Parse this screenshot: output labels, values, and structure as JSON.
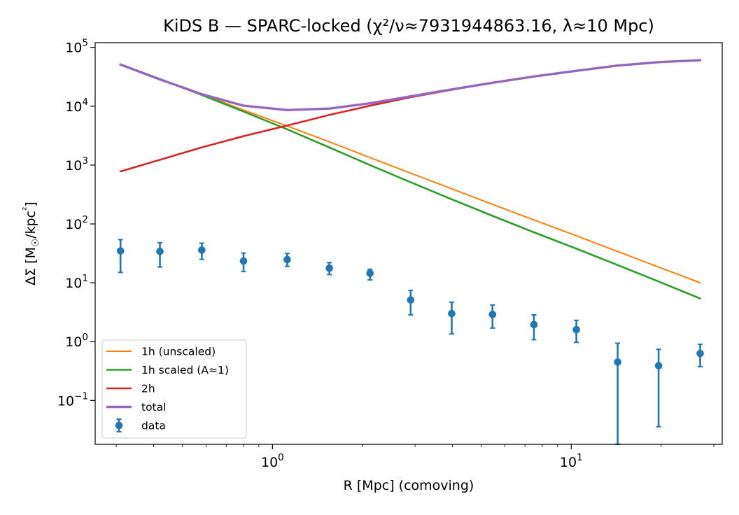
{
  "chart_data": {
    "type": "line",
    "title": "KiDS B — SPARC-locked (χ²/ν≈7931944863.16, λ≈10 Mpc)",
    "xlabel": "R [Mpc] (comoving)",
    "ylabel": "ΔΣ [M☉/kpc²]",
    "xscale": "log",
    "yscale": "log",
    "xlim": [
      0.255,
      32
    ],
    "ylim": [
      0.018,
      120000
    ],
    "x_ticks": [
      {
        "value": 1,
        "base": "10",
        "exp": "0"
      },
      {
        "value": 10,
        "base": "10",
        "exp": "1"
      }
    ],
    "y_ticks": [
      {
        "value": 100000,
        "base": "10",
        "exp": "5"
      },
      {
        "value": 10000,
        "base": "10",
        "exp": "4"
      },
      {
        "value": 1000,
        "base": "10",
        "exp": "3"
      },
      {
        "value": 100,
        "base": "10",
        "exp": "2"
      },
      {
        "value": 10,
        "base": "10",
        "exp": "1"
      },
      {
        "value": 1,
        "base": "10",
        "exp": "0"
      },
      {
        "value": 0.1,
        "base": "10",
        "exp": "−1"
      }
    ],
    "legend_position": "lower-left",
    "grid": false,
    "x": [
      0.31,
      0.42,
      0.58,
      0.8,
      1.12,
      1.55,
      2.12,
      2.9,
      3.98,
      5.45,
      7.5,
      10.4,
      14.3,
      19.6,
      27.0
    ],
    "series": [
      {
        "name": "1h (unscaled)",
        "kind": "line",
        "color": "#ff7f0e",
        "values": [
          51000,
          29000,
          16000,
          8600,
          4600,
          2480,
          1340,
          730,
          395,
          215,
          117,
          63,
          34,
          18.5,
          10
        ]
      },
      {
        "name": "1h scaled (A≈1)",
        "kind": "line",
        "color": "#2ca02c",
        "values": [
          51000,
          29000,
          15500,
          8100,
          4050,
          1990,
          1000,
          510,
          262,
          137,
          72,
          38,
          20,
          10.5,
          5.4
        ]
      },
      {
        "name": "2h",
        "kind": "line",
        "color": "#d62728",
        "values": [
          780,
          1230,
          2000,
          3100,
          4700,
          7100,
          10200,
          14200,
          19000,
          25000,
          32000,
          40000,
          49000,
          56000,
          60500
        ]
      },
      {
        "name": "total",
        "kind": "line",
        "color": "#9467bd",
        "values": [
          51000,
          28500,
          16000,
          10200,
          8600,
          9100,
          11200,
          14700,
          19300,
          25000,
          32000,
          40000,
          49000,
          56000,
          60500
        ]
      },
      {
        "name": "data",
        "kind": "errorbar",
        "color": "#1f77b4",
        "values": [
          34.7,
          34.1,
          35.9,
          23.4,
          24.8,
          17.7,
          14.5,
          5.1,
          3.0,
          2.9,
          1.95,
          1.6,
          0.45,
          0.39,
          0.63
        ],
        "err_low": [
          15,
          18.5,
          25,
          15.5,
          19,
          13.8,
          11.2,
          2.85,
          1.35,
          1.7,
          1.08,
          0.97,
          0.018,
          0.036,
          0.375
        ],
        "err_high": [
          54,
          48,
          47,
          32,
          31.5,
          22,
          17,
          7.4,
          4.7,
          4.2,
          2.85,
          2.3,
          0.94,
          0.74,
          0.9
        ]
      }
    ]
  }
}
